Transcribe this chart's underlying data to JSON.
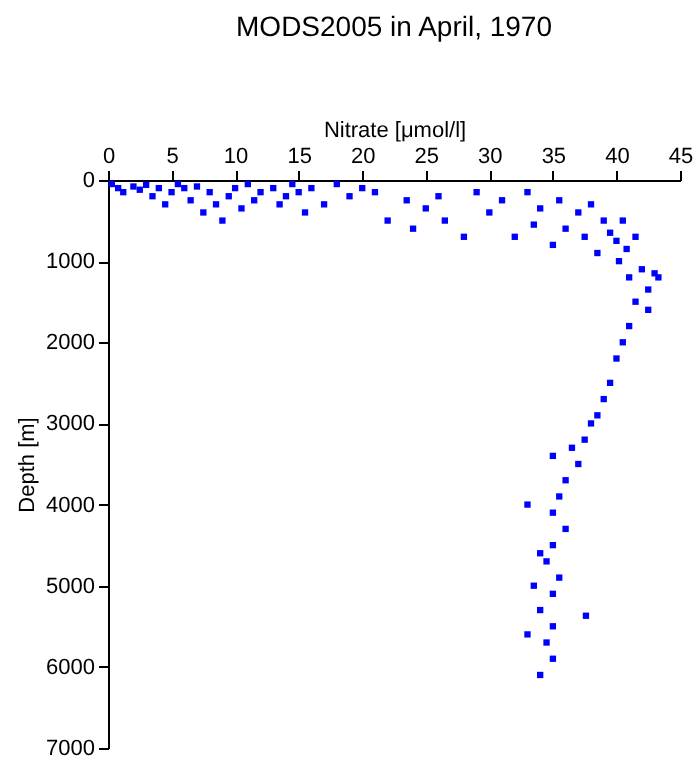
{
  "chart_data": {
    "type": "scatter",
    "title": "MODS2005 in April, 1970",
    "xlabel": "Nitrate [μmol/l]",
    "ylabel": "Depth [m]",
    "xlim": [
      0,
      45
    ],
    "xticks": [
      0,
      5,
      10,
      15,
      20,
      25,
      30,
      35,
      40,
      45
    ],
    "ylim": [
      7000,
      0
    ],
    "yticks": [
      0,
      1000,
      2000,
      3000,
      4000,
      5000,
      6000,
      7000
    ],
    "grid": false,
    "marker": "square",
    "x": [
      0.3,
      0.8,
      1.2,
      2,
      2.5,
      3,
      3.5,
      4,
      4.5,
      5,
      5.5,
      6,
      6.5,
      7,
      7.5,
      8,
      8.5,
      9,
      9.5,
      10,
      10.5,
      11,
      11.5,
      12,
      13,
      13.5,
      14,
      14.5,
      15,
      15.5,
      16,
      17,
      18,
      19,
      20,
      21,
      22,
      23.5,
      24,
      25,
      26,
      26.5,
      28,
      29,
      30,
      31,
      32,
      33,
      33.5,
      34,
      35,
      35.5,
      36,
      37,
      37.5,
      38,
      38.5,
      39,
      39.5,
      40,
      40.2,
      40.5,
      40.8,
      41,
      41.5,
      41.5,
      42,
      42.5,
      43,
      43.3,
      42.5,
      41,
      40.5,
      40,
      39.5,
      39,
      38.5,
      38,
      37.5,
      36.5,
      37,
      36,
      35.5,
      35,
      36,
      35,
      34.5,
      35.5,
      35,
      34,
      35,
      34.5,
      35,
      34,
      33,
      33.5,
      37.6,
      34,
      35,
      33
    ],
    "series": [
      {
        "color": "#0000ff",
        "values": [
          50,
          100,
          150,
          80,
          120,
          60,
          200,
          100,
          300,
          150,
          50,
          100,
          250,
          80,
          400,
          150,
          300,
          500,
          200,
          100,
          350,
          50,
          250,
          150,
          100,
          300,
          200,
          50,
          150,
          400,
          100,
          300,
          50,
          200,
          100,
          150,
          500,
          250,
          600,
          350,
          200,
          500,
          700,
          150,
          400,
          250,
          700,
          150,
          550,
          350,
          800,
          250,
          600,
          400,
          700,
          300,
          900,
          500,
          650,
          750,
          1000,
          500,
          850,
          1200,
          700,
          1500,
          1100,
          1350,
          1150,
          1200,
          1600,
          1800,
          2000,
          2200,
          2500,
          2700,
          2900,
          3000,
          3200,
          3300,
          3500,
          3700,
          3900,
          4100,
          4300,
          4500,
          4700,
          4900,
          5100,
          5300,
          5500,
          5700,
          5900,
          6100,
          5600,
          5000,
          5370,
          4600,
          3400,
          4000
        ]
      }
    ]
  }
}
